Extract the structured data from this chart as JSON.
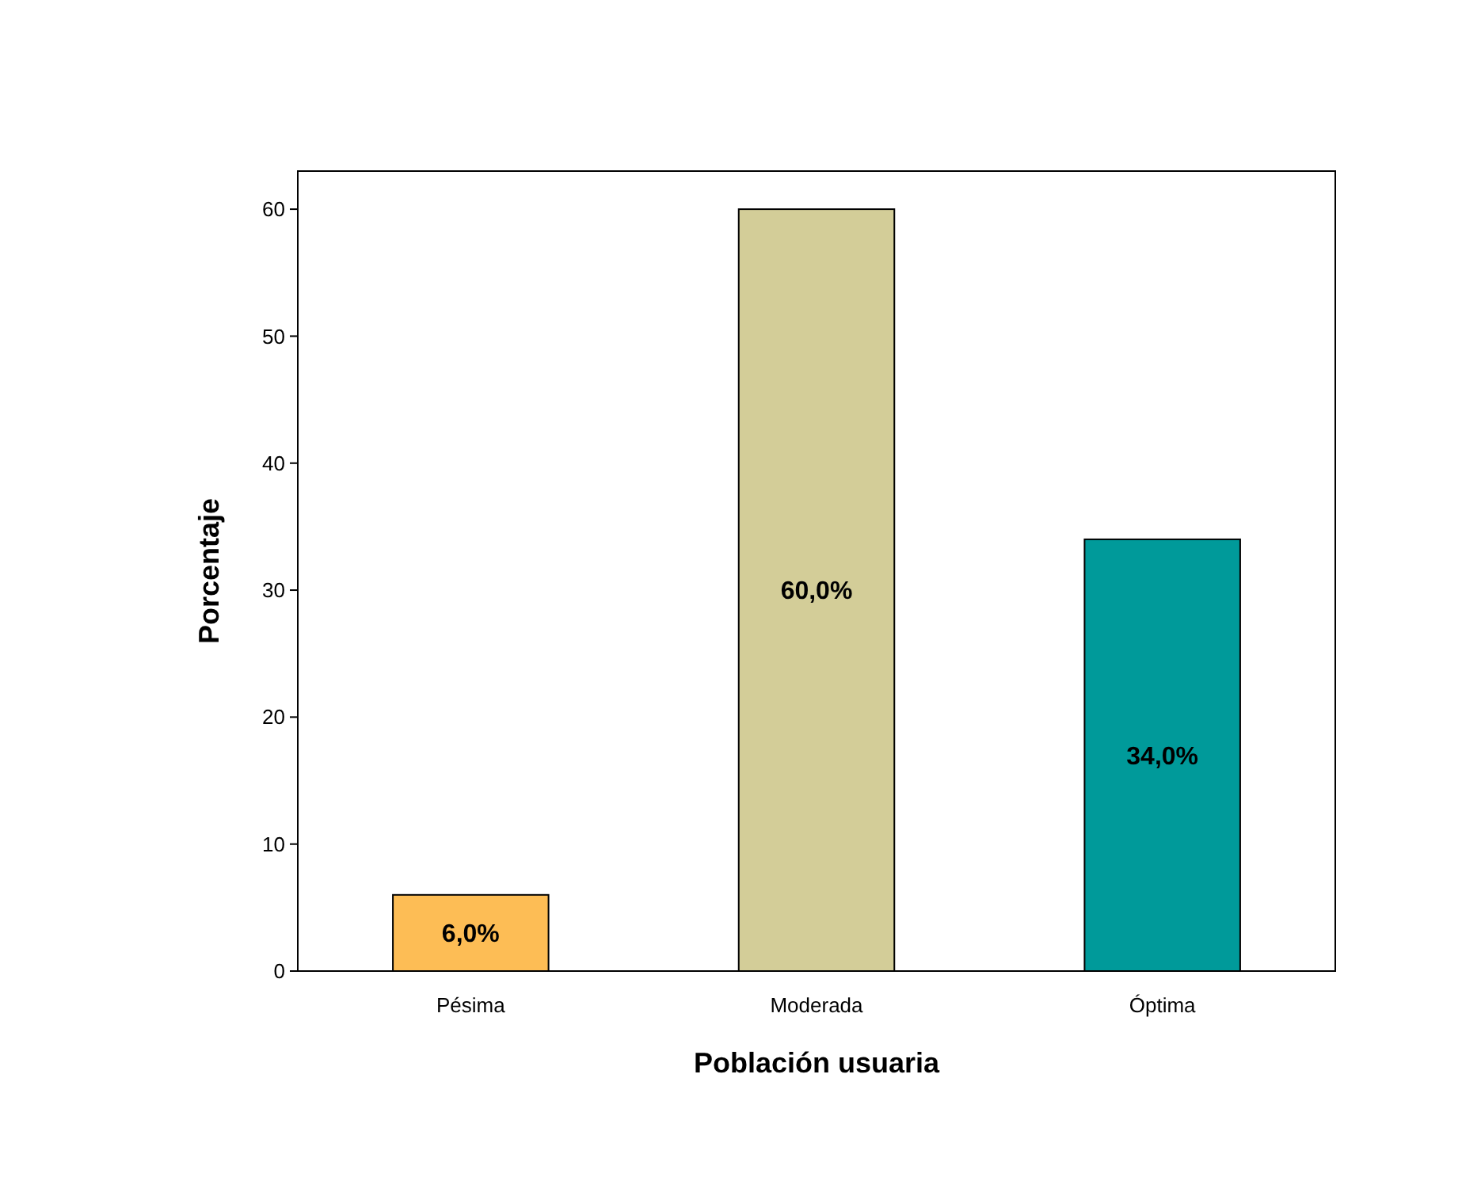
{
  "chart_data": {
    "type": "bar",
    "xlabel": "Población usuaria",
    "ylabel": "Porcentaje",
    "categories": [
      "Pésima",
      "Moderada",
      "Óptima"
    ],
    "values": [
      6,
      60,
      34
    ],
    "colors": [
      "#fdbd55",
      "#d3cd98",
      "#009a9a"
    ],
    "value_labels": [
      "6,0%",
      "60,0%",
      "34,0%"
    ],
    "ylim": [
      0,
      63
    ],
    "yticks": [
      0,
      10,
      20,
      30,
      40,
      50,
      60
    ],
    "grid": false
  }
}
